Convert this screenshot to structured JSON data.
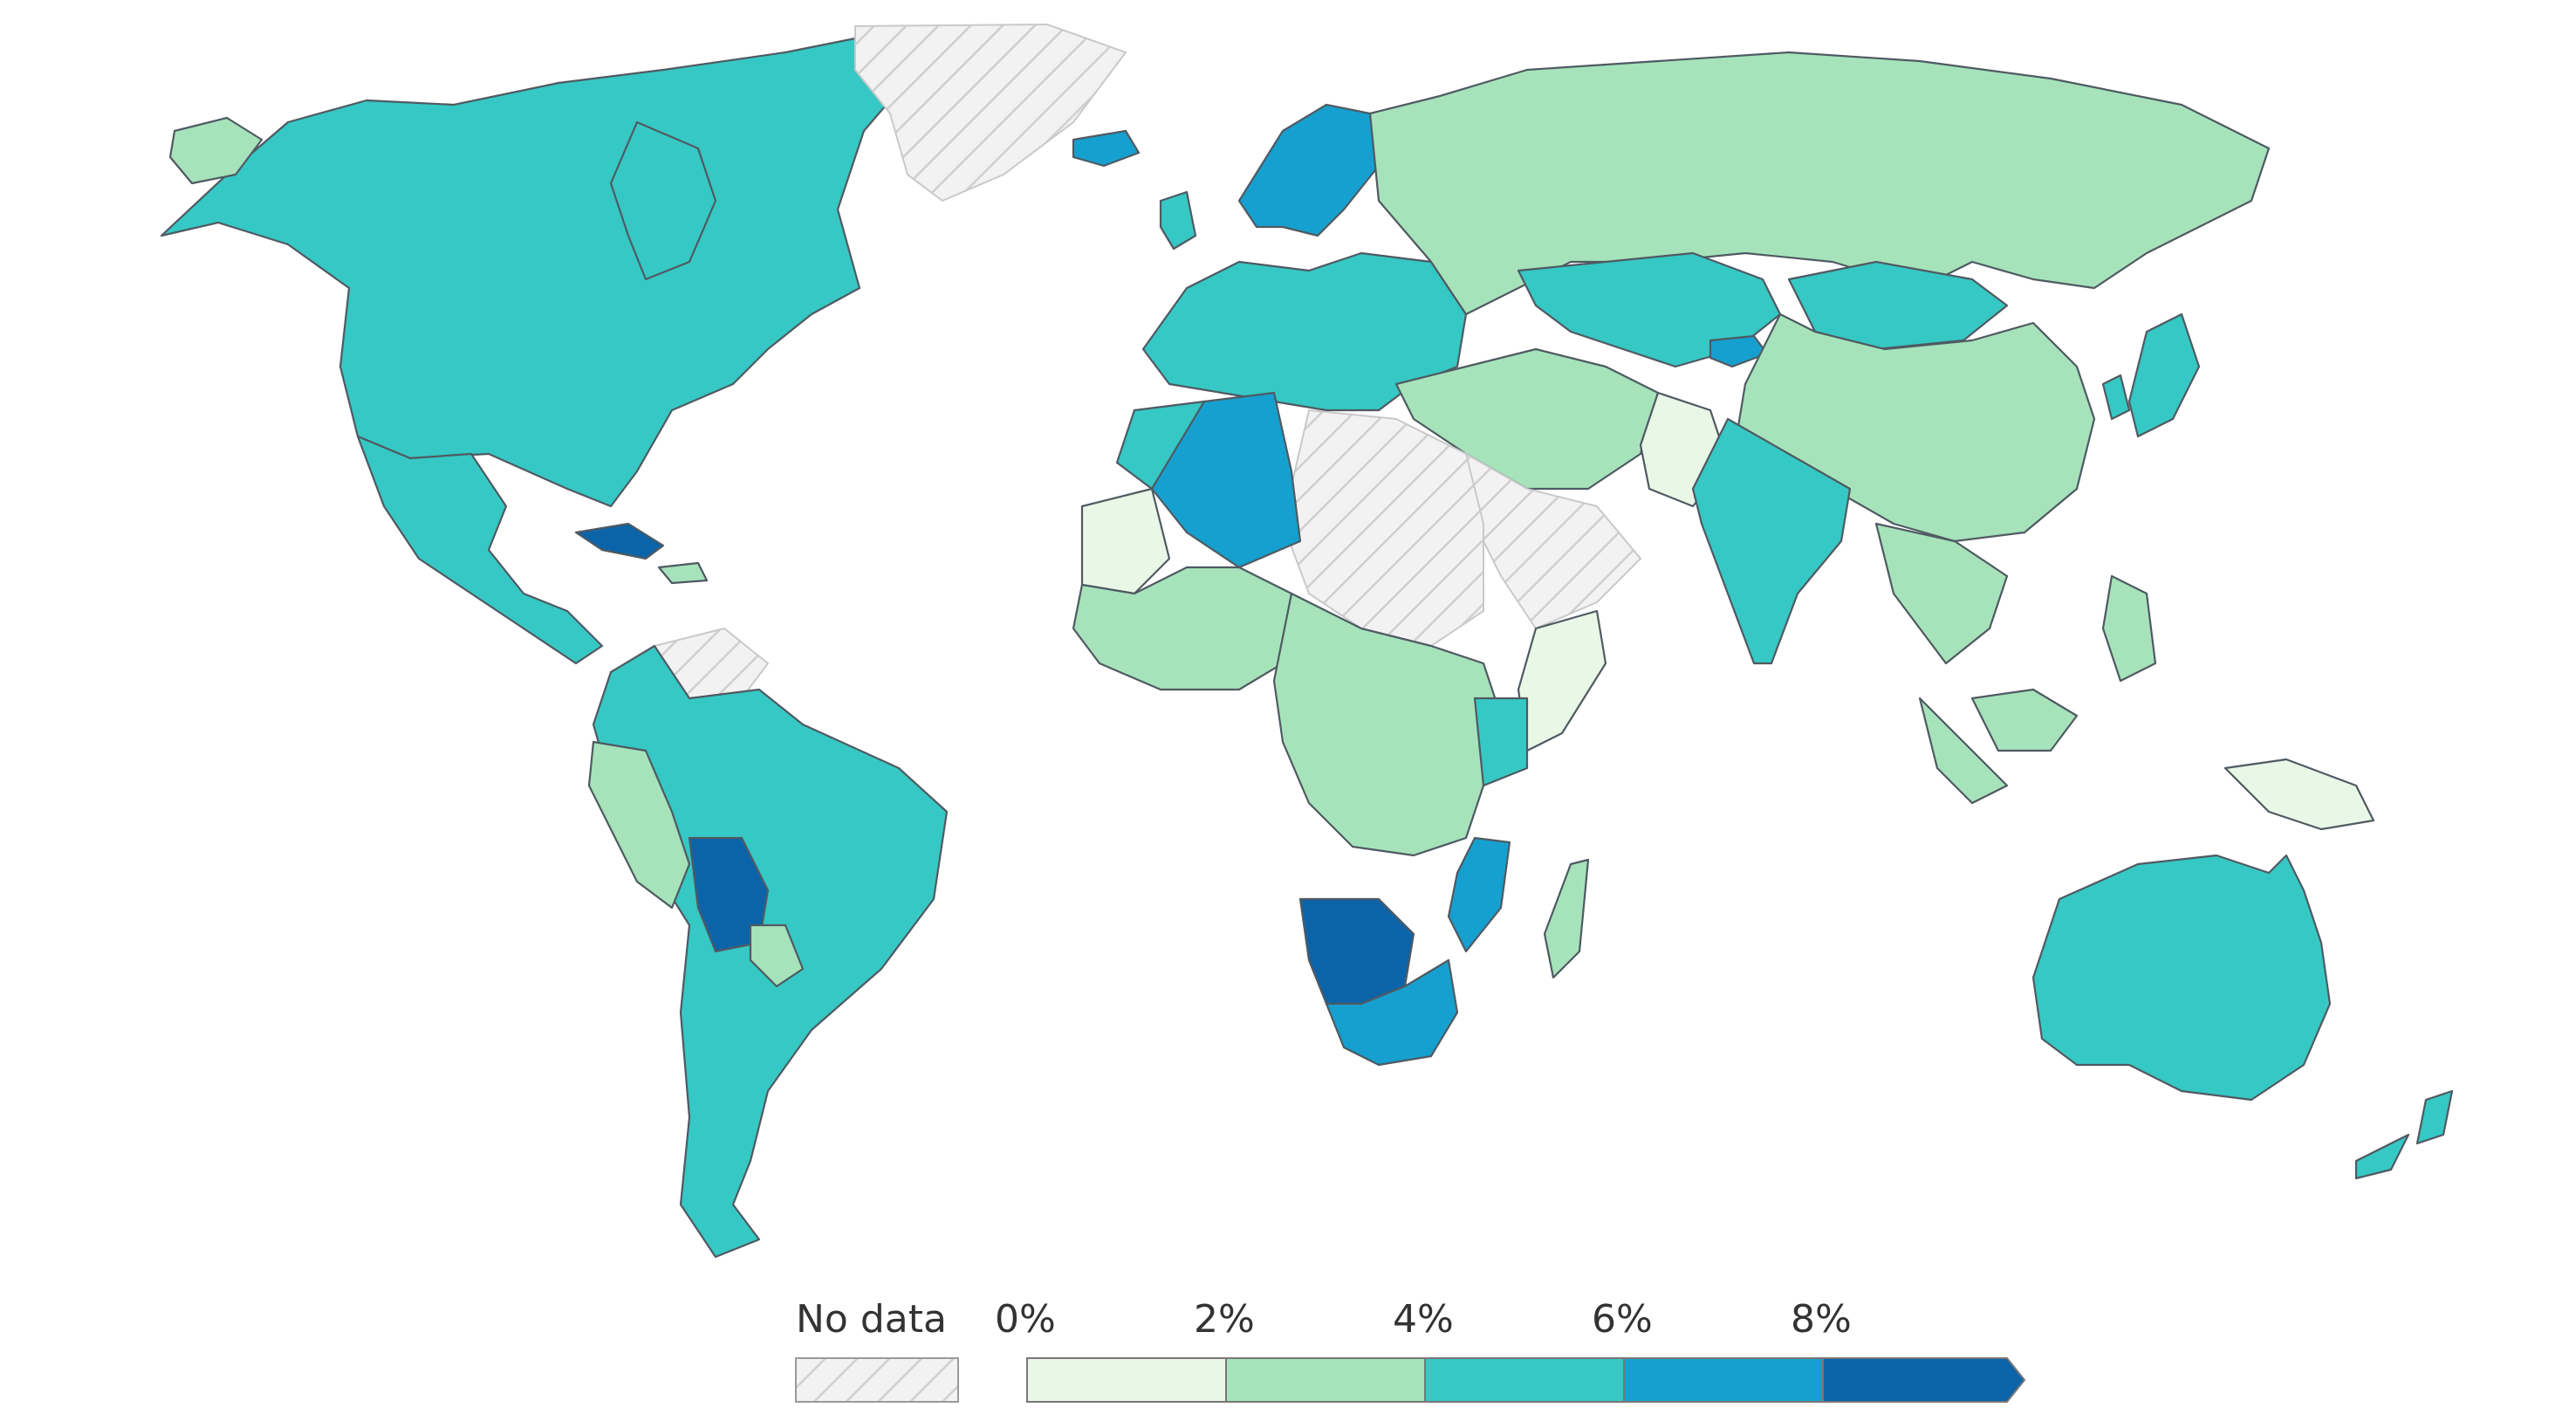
{
  "legend": {
    "no_data_label": "No data",
    "bins": [
      {
        "label": "0%",
        "color": "#e9f7e6"
      },
      {
        "label": "2%",
        "color": "#a6e3bb"
      },
      {
        "label": "4%",
        "color": "#36c8c4"
      },
      {
        "label": "6%",
        "color": "#16a0cf"
      },
      {
        "label": "8%",
        "color": "#0c64a8"
      }
    ]
  },
  "colors": {
    "no_data_fill": "#f2f2f2",
    "no_data_hatch": "#cfcfcf",
    "border": "#4f5a62",
    "background": "#ffffff"
  },
  "regions": [
    {
      "name": "north-america-region",
      "category": "4-6"
    },
    {
      "name": "greenland-region",
      "category": "no-data"
    },
    {
      "name": "central-america-caribbean-region",
      "category": "4-6"
    },
    {
      "name": "cuba-region",
      "category": "8+"
    },
    {
      "name": "south-america-region",
      "category": "4-6"
    },
    {
      "name": "bolivia-region",
      "category": "8+"
    },
    {
      "name": "peru-region",
      "category": "2-4"
    },
    {
      "name": "paraguay-region",
      "category": "2-4"
    },
    {
      "name": "venezuela-region",
      "category": "no-data"
    },
    {
      "name": "europe-region",
      "category": "4-6"
    },
    {
      "name": "scandinavia-region",
      "category": "6-8"
    },
    {
      "name": "iceland-region",
      "category": "6-8"
    },
    {
      "name": "russia-region",
      "category": "2-4"
    },
    {
      "name": "central-asia-region",
      "category": "4-6"
    },
    {
      "name": "kyrgyzstan-region",
      "category": "6-8"
    },
    {
      "name": "china-region",
      "category": "2-4"
    },
    {
      "name": "mongolia-region",
      "category": "4-6"
    },
    {
      "name": "middle-east-region",
      "category": "2-4"
    },
    {
      "name": "arabian-peninsula-region",
      "category": "no-data"
    },
    {
      "name": "pakistan-region",
      "category": "0-2"
    },
    {
      "name": "india-region",
      "category": "4-6"
    },
    {
      "name": "southeast-asia-region",
      "category": "2-4"
    },
    {
      "name": "japan-korea-region",
      "category": "4-6"
    },
    {
      "name": "north-africa-nodata-region",
      "category": "no-data"
    },
    {
      "name": "algeria-region",
      "category": "6-8"
    },
    {
      "name": "morocco-region",
      "category": "4-6"
    },
    {
      "name": "mauritania-region",
      "category": "0-2"
    },
    {
      "name": "west-africa-region",
      "category": "2-4"
    },
    {
      "name": "central-africa-region",
      "category": "2-4"
    },
    {
      "name": "horn-of-africa-region",
      "category": "0-2"
    },
    {
      "name": "kenya-region",
      "category": "4-6"
    },
    {
      "name": "mozambique-region",
      "category": "6-8"
    },
    {
      "name": "namibia-botswana-region",
      "category": "8+"
    },
    {
      "name": "south-africa-region",
      "category": "6-8"
    },
    {
      "name": "madagascar-region",
      "category": "2-4"
    },
    {
      "name": "australia-region",
      "category": "4-6"
    },
    {
      "name": "new-zealand-region",
      "category": "4-6"
    },
    {
      "name": "papua-new-guinea-region",
      "category": "0-2"
    }
  ]
}
